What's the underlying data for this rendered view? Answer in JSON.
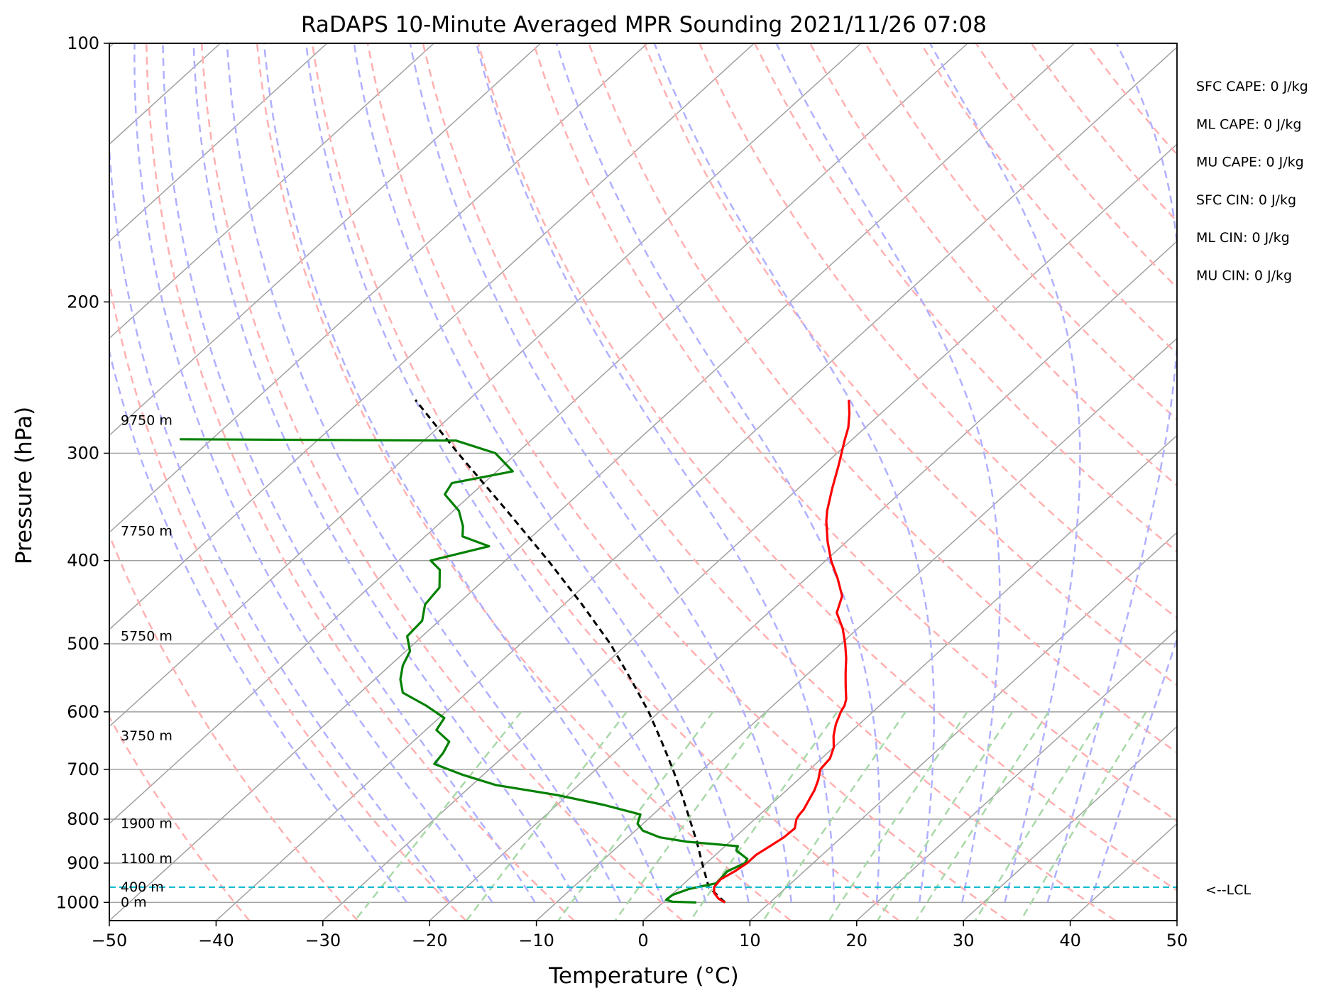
{
  "chart_data": {
    "type": "skew-t log-p sounding",
    "title": "RaDAPS 10-Minute Averaged MPR Sounding 2021/11/26 07:08",
    "xlabel": "Temperature (°C)",
    "ylabel": "Pressure (hPa)",
    "xlim": [
      -50,
      50
    ],
    "ylim": [
      1050,
      100
    ],
    "y_scale": "log",
    "grid": true,
    "x_ticks": [
      "−50",
      "−40",
      "−30",
      "−20",
      "−10",
      "0",
      "10",
      "20",
      "30",
      "40",
      "50"
    ],
    "y_ticks": [
      "100",
      "200",
      "300",
      "400",
      "500",
      "600",
      "700",
      "800",
      "900",
      "1000"
    ],
    "colors": {
      "temperature": "#ff0000",
      "dewpoint": "#008000",
      "parcel": "#000000",
      "lcl_line": "#17becf",
      "isotherm": "#a0a0a0",
      "dry_adiabat": "#ffb0b0",
      "moist_adiabat": "#b0b0ff",
      "mixing_ratio": "#a8d8a8"
    },
    "temperature_profile": [
      {
        "p": 1000,
        "t": 5.8
      },
      {
        "p": 990,
        "t": 4.8
      },
      {
        "p": 975,
        "t": 3.8
      },
      {
        "p": 960,
        "t": 3.2
      },
      {
        "p": 940,
        "t": 3.0
      },
      {
        "p": 920,
        "t": 3.5
      },
      {
        "p": 900,
        "t": 3.8
      },
      {
        "p": 880,
        "t": 3.8
      },
      {
        "p": 860,
        "t": 4.2
      },
      {
        "p": 840,
        "t": 4.6
      },
      {
        "p": 820,
        "t": 4.7
      },
      {
        "p": 800,
        "t": 3.9
      },
      {
        "p": 790,
        "t": 3.7
      },
      {
        "p": 780,
        "t": 3.6
      },
      {
        "p": 760,
        "t": 3.1
      },
      {
        "p": 740,
        "t": 2.6
      },
      {
        "p": 720,
        "t": 1.9
      },
      {
        "p": 700,
        "t": 1.0
      },
      {
        "p": 680,
        "t": 0.8
      },
      {
        "p": 660,
        "t": 0.0
      },
      {
        "p": 640,
        "t": -1.2
      },
      {
        "p": 620,
        "t": -2.2
      },
      {
        "p": 600,
        "t": -3.0
      },
      {
        "p": 590,
        "t": -3.3
      },
      {
        "p": 580,
        "t": -3.8
      },
      {
        "p": 560,
        "t": -5.2
      },
      {
        "p": 540,
        "t": -6.6
      },
      {
        "p": 520,
        "t": -8.0
      },
      {
        "p": 500,
        "t": -9.6
      },
      {
        "p": 480,
        "t": -11.4
      },
      {
        "p": 460,
        "t": -13.6
      },
      {
        "p": 440,
        "t": -14.8
      },
      {
        "p": 420,
        "t": -17.0
      },
      {
        "p": 400,
        "t": -19.5
      },
      {
        "p": 380,
        "t": -21.8
      },
      {
        "p": 360,
        "t": -24.0
      },
      {
        "p": 350,
        "t": -25.0
      },
      {
        "p": 330,
        "t": -26.8
      },
      {
        "p": 310,
        "t": -28.6
      },
      {
        "p": 290,
        "t": -30.6
      },
      {
        "p": 280,
        "t": -31.6
      },
      {
        "p": 270,
        "t": -32.9
      },
      {
        "p": 260,
        "t": -34.4
      }
    ],
    "dewpoint_profile": [
      {
        "p": 1000,
        "t": 3.1
      },
      {
        "p": 998,
        "t": 0.8
      },
      {
        "p": 993,
        "t": 0.0
      },
      {
        "p": 980,
        "t": 0.1
      },
      {
        "p": 965,
        "t": 1.0
      },
      {
        "p": 960,
        "t": 1.6
      },
      {
        "p": 950,
        "t": 3.0
      },
      {
        "p": 920,
        "t": 2.8
      },
      {
        "p": 900,
        "t": 3.6
      },
      {
        "p": 890,
        "t": 3.4
      },
      {
        "p": 870,
        "t": 1.5
      },
      {
        "p": 860,
        "t": 1.2
      },
      {
        "p": 850,
        "t": -4.0
      },
      {
        "p": 840,
        "t": -7.0
      },
      {
        "p": 825,
        "t": -9.3
      },
      {
        "p": 810,
        "t": -10.5
      },
      {
        "p": 790,
        "t": -11.2
      },
      {
        "p": 770,
        "t": -15.6
      },
      {
        "p": 750,
        "t": -21.0
      },
      {
        "p": 730,
        "t": -27.8
      },
      {
        "p": 710,
        "t": -32.0
      },
      {
        "p": 690,
        "t": -35.7
      },
      {
        "p": 670,
        "t": -36.0
      },
      {
        "p": 650,
        "t": -36.6
      },
      {
        "p": 630,
        "t": -39.0
      },
      {
        "p": 610,
        "t": -39.5
      },
      {
        "p": 590,
        "t": -42.5
      },
      {
        "p": 570,
        "t": -46.0
      },
      {
        "p": 550,
        "t": -47.6
      },
      {
        "p": 530,
        "t": -48.8
      },
      {
        "p": 510,
        "t": -49.6
      },
      {
        "p": 490,
        "t": -51.4
      },
      {
        "p": 470,
        "t": -51.6
      },
      {
        "p": 450,
        "t": -53.0
      },
      {
        "p": 430,
        "t": -53.4
      },
      {
        "p": 410,
        "t": -55.2
      },
      {
        "p": 400,
        "t": -57.0
      },
      {
        "p": 385,
        "t": -53.0
      },
      {
        "p": 375,
        "t": -56.5
      },
      {
        "p": 365,
        "t": -57.5
      },
      {
        "p": 350,
        "t": -59.5
      },
      {
        "p": 335,
        "t": -62.5
      },
      {
        "p": 325,
        "t": -63.0
      },
      {
        "p": 315,
        "t": -58.5
      },
      {
        "p": 300,
        "t": -62.0
      },
      {
        "p": 290,
        "t": -67.0
      },
      {
        "p": 289,
        "t": -93.0
      }
    ],
    "parcel_profile": [
      {
        "p": 1000,
        "t": 5.8
      },
      {
        "p": 960,
        "t": 2.7
      },
      {
        "p": 900,
        "t": -0.4
      },
      {
        "p": 850,
        "t": -3.1
      },
      {
        "p": 800,
        "t": -6.1
      },
      {
        "p": 750,
        "t": -9.3
      },
      {
        "p": 700,
        "t": -12.8
      },
      {
        "p": 650,
        "t": -16.7
      },
      {
        "p": 600,
        "t": -21.0
      },
      {
        "p": 550,
        "t": -26.0
      },
      {
        "p": 500,
        "t": -31.6
      },
      {
        "p": 450,
        "t": -38.3
      },
      {
        "p": 400,
        "t": -46.0
      },
      {
        "p": 350,
        "t": -55.0
      },
      {
        "p": 300,
        "t": -65.5
      },
      {
        "p": 260,
        "t": -75.0
      }
    ],
    "lcl_pressure": 960,
    "lcl_label": "<--LCL",
    "height_labels": [
      {
        "p": 1000,
        "text": "0 m"
      },
      {
        "p": 960,
        "text": "400 m"
      },
      {
        "p": 890,
        "text": "1100 m"
      },
      {
        "p": 810,
        "text": "1900 m"
      },
      {
        "p": 640,
        "text": "3750 m"
      },
      {
        "p": 490,
        "text": "5750 m"
      },
      {
        "p": 370,
        "text": "7750 m"
      },
      {
        "p": 275,
        "text": "9750 m"
      }
    ],
    "indices": [
      "SFC CAPE: 0 J/kg",
      "ML CAPE: 0 J/kg",
      "MU CAPE: 0 J/kg",
      "SFC CIN: 0 J/kg",
      "ML CIN: 0 J/kg",
      "MU CIN: 0 J/kg"
    ]
  }
}
